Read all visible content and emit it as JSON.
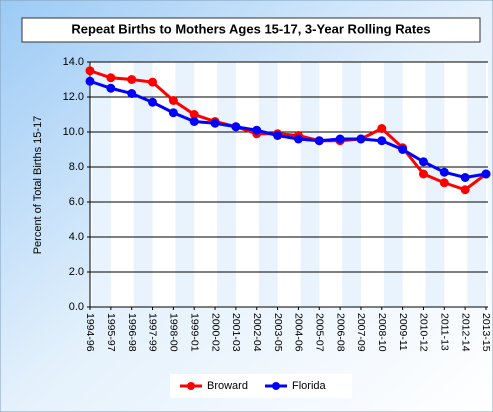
{
  "chart_data": {
    "type": "line",
    "title": "Repeat Births to Mothers Ages 15-17, 3-Year Rolling Rates",
    "y_label": "Percent of Total Births 15-17",
    "categories": [
      "1994-96",
      "1995-97",
      "1996-98",
      "1997-99",
      "1998-00",
      "1999-01",
      "2000-02",
      "2001-03",
      "2002-04",
      "2003-05",
      "2004-06",
      "2005-07",
      "2006-08",
      "2007-09",
      "2008-10",
      "2009-11",
      "2010-12",
      "2011-13",
      "2012-14",
      "2013-15"
    ],
    "series": [
      {
        "name": "Broward",
        "color": "#ff0000",
        "values": [
          13.5,
          13.1,
          13.0,
          12.85,
          11.8,
          11.0,
          10.6,
          10.3,
          9.9,
          9.9,
          9.8,
          9.5,
          9.5,
          9.6,
          10.2,
          9.1,
          7.6,
          7.1,
          6.7,
          7.6
        ]
      },
      {
        "name": "Florida",
        "color": "#0000ff",
        "values": [
          12.9,
          12.5,
          12.2,
          11.7,
          11.1,
          10.6,
          10.5,
          10.3,
          10.1,
          9.8,
          9.6,
          9.5,
          9.6,
          9.6,
          9.5,
          9.0,
          8.3,
          7.7,
          7.4,
          7.6
        ]
      }
    ],
    "ylim": [
      0,
      14
    ],
    "yticks": [
      {
        "value": 0,
        "label": "0.0"
      },
      {
        "value": 2,
        "label": "2.0"
      },
      {
        "value": 4,
        "label": "4.0"
      },
      {
        "value": 6,
        "label": "6.0"
      },
      {
        "value": 8,
        "label": "8.0"
      },
      {
        "value": 10,
        "label": "10.0"
      },
      {
        "value": 12,
        "label": "12.0"
      },
      {
        "value": 14,
        "label": "14.0"
      }
    ],
    "grid": true
  }
}
